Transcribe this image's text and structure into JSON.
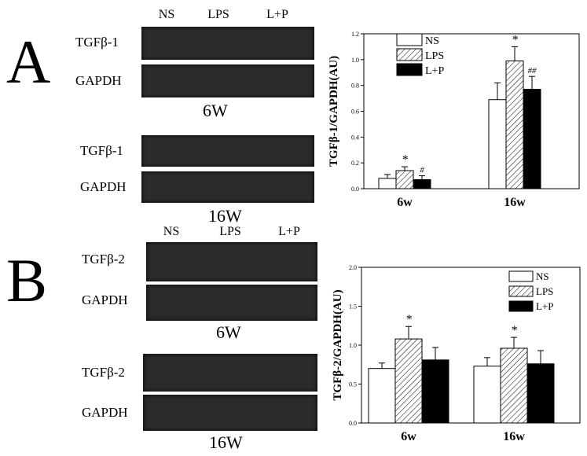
{
  "panels": [
    {
      "letter": "A",
      "lanes": [
        "NS",
        "LPS",
        "L+P"
      ],
      "blot_groups": [
        {
          "week": "6W",
          "rows": [
            "TGFβ-1",
            "GAPDH"
          ]
        },
        {
          "week": "16W",
          "rows": [
            "TGFβ-1",
            "GAPDH"
          ]
        }
      ]
    },
    {
      "letter": "B",
      "lanes": [
        "NS",
        "LPS",
        "L+P"
      ],
      "blot_groups": [
        {
          "week": "6W",
          "rows": [
            "TGFβ-2",
            "GAPDH"
          ]
        },
        {
          "week": "16W",
          "rows": [
            "TGFβ-2",
            "GAPDH"
          ]
        }
      ]
    }
  ],
  "chart_data": [
    {
      "type": "bar",
      "categories": [
        "6w",
        "16w"
      ],
      "ylabel": "TGFβ-1/GAPDH(AU)",
      "ylim": [
        0,
        1.2
      ],
      "yticks": [
        "0.0",
        "0.2",
        "0.4",
        "0.6",
        "0.8",
        "1.0",
        "1.2"
      ],
      "legend_position": "top-left",
      "series": [
        {
          "name": "NS",
          "values": [
            0.08,
            0.69
          ],
          "errors": [
            0.03,
            0.13
          ],
          "fill": "white",
          "marks": [
            "",
            ""
          ]
        },
        {
          "name": "LPS",
          "values": [
            0.14,
            0.99
          ],
          "errors": [
            0.03,
            0.11
          ],
          "fill": "hatch",
          "marks": [
            "*",
            "*"
          ]
        },
        {
          "name": "L+P",
          "values": [
            0.07,
            0.77
          ],
          "errors": [
            0.03,
            0.1
          ],
          "fill": "black",
          "marks": [
            "#",
            "##"
          ]
        }
      ]
    },
    {
      "type": "bar",
      "categories": [
        "6w",
        "16w"
      ],
      "ylabel": "TGFβ-2/GAPDH(AU)",
      "ylim": [
        0,
        2.0
      ],
      "yticks": [
        "0.0",
        "0.5",
        "1.0",
        "1.5",
        "2.0"
      ],
      "legend_position": "top-right",
      "series": [
        {
          "name": "NS",
          "values": [
            0.7,
            0.73
          ],
          "errors": [
            0.07,
            0.11
          ],
          "fill": "white",
          "marks": [
            "",
            ""
          ]
        },
        {
          "name": "LPS",
          "values": [
            1.08,
            0.96
          ],
          "errors": [
            0.16,
            0.14
          ],
          "fill": "hatch",
          "marks": [
            "*",
            "*"
          ]
        },
        {
          "name": "L+P",
          "values": [
            0.81,
            0.76
          ],
          "errors": [
            0.16,
            0.17
          ],
          "fill": "black",
          "marks": [
            "",
            ""
          ]
        }
      ]
    }
  ],
  "colors": {
    "ink": "#000000",
    "blot": "#2b2b2b"
  }
}
